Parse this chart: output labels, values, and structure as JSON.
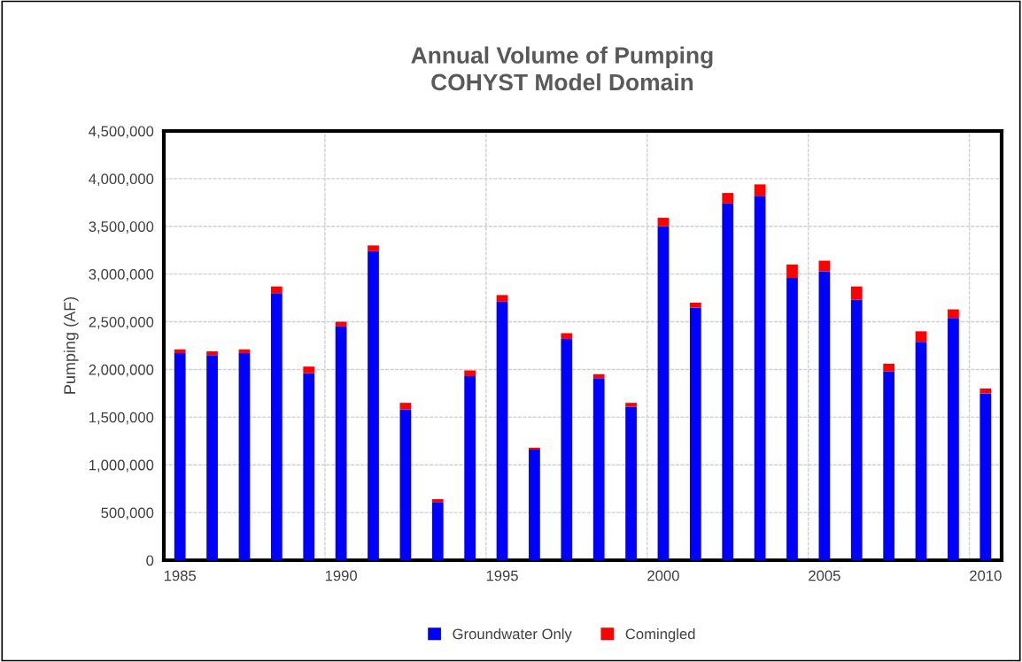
{
  "chart_data": {
    "type": "bar",
    "title": "Annual Volume of Pumping\nCOHYST Model Domain",
    "ylabel": "Pumping (AF)",
    "categories": [
      "1985",
      null,
      null,
      null,
      null,
      "1990",
      null,
      null,
      null,
      null,
      "1995",
      null,
      null,
      null,
      null,
      "2000",
      null,
      null,
      null,
      null,
      "2005",
      null,
      null,
      null,
      null,
      "2010"
    ],
    "stacked": true,
    "series": [
      {
        "name": "Groundwater Only",
        "color": "#0000ff",
        "values": [
          2170000,
          2150000,
          2170000,
          2800000,
          1960000,
          2450000,
          3240000,
          1580000,
          610000,
          1930000,
          2710000,
          1160000,
          2320000,
          1910000,
          1610000,
          3500000,
          2650000,
          3740000,
          3820000,
          2960000,
          3030000,
          2730000,
          1980000,
          2290000,
          2540000,
          1750000
        ]
      },
      {
        "name": "Comingled",
        "color": "#ff0000",
        "values": [
          40000,
          40000,
          40000,
          70000,
          70000,
          50000,
          60000,
          70000,
          30000,
          60000,
          70000,
          20000,
          60000,
          40000,
          40000,
          90000,
          50000,
          110000,
          120000,
          140000,
          110000,
          140000,
          80000,
          110000,
          90000,
          50000
        ]
      }
    ],
    "ylim": [
      0,
      4500000
    ],
    "yticks": [
      {
        "value": 0,
        "label": "0"
      },
      {
        "value": 500000,
        "label": "500,000"
      },
      {
        "value": 1000000,
        "label": "1,000,000"
      },
      {
        "value": 1500000,
        "label": "1,500,000"
      },
      {
        "value": 2000000,
        "label": "2,000,000"
      },
      {
        "value": 2500000,
        "label": "2,500,000"
      },
      {
        "value": 3000000,
        "label": "3,000,000"
      },
      {
        "value": 3500000,
        "label": "3,500,000"
      },
      {
        "value": 4000000,
        "label": "4,000,000"
      },
      {
        "value": 4500000,
        "label": "4,500,000"
      }
    ],
    "grid": true,
    "legend": "bottom"
  }
}
